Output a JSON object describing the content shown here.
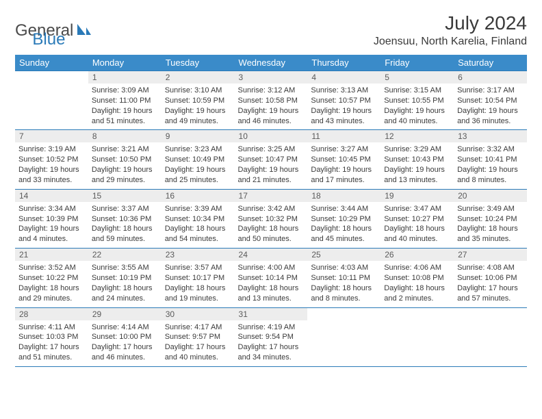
{
  "brand": {
    "part1": "General",
    "part2": "Blue"
  },
  "title": "July 2024",
  "location": "Joensuu, North Karelia, Finland",
  "colors": {
    "header_bg": "#3a8bc9",
    "border": "#2a7ab8",
    "daynum_bg": "#ededed",
    "text": "#3a3a3a"
  },
  "typography": {
    "title_fontsize": 28,
    "location_fontsize": 16,
    "header_fontsize": 13,
    "daynum_fontsize": 12,
    "body_fontsize": 11
  },
  "weekdays": [
    "Sunday",
    "Monday",
    "Tuesday",
    "Wednesday",
    "Thursday",
    "Friday",
    "Saturday"
  ],
  "weeks": [
    [
      {
        "n": "",
        "sr": "",
        "ss": "",
        "dl": ""
      },
      {
        "n": "1",
        "sr": "Sunrise: 3:09 AM",
        "ss": "Sunset: 11:00 PM",
        "dl": "Daylight: 19 hours and 51 minutes."
      },
      {
        "n": "2",
        "sr": "Sunrise: 3:10 AM",
        "ss": "Sunset: 10:59 PM",
        "dl": "Daylight: 19 hours and 49 minutes."
      },
      {
        "n": "3",
        "sr": "Sunrise: 3:12 AM",
        "ss": "Sunset: 10:58 PM",
        "dl": "Daylight: 19 hours and 46 minutes."
      },
      {
        "n": "4",
        "sr": "Sunrise: 3:13 AM",
        "ss": "Sunset: 10:57 PM",
        "dl": "Daylight: 19 hours and 43 minutes."
      },
      {
        "n": "5",
        "sr": "Sunrise: 3:15 AM",
        "ss": "Sunset: 10:55 PM",
        "dl": "Daylight: 19 hours and 40 minutes."
      },
      {
        "n": "6",
        "sr": "Sunrise: 3:17 AM",
        "ss": "Sunset: 10:54 PM",
        "dl": "Daylight: 19 hours and 36 minutes."
      }
    ],
    [
      {
        "n": "7",
        "sr": "Sunrise: 3:19 AM",
        "ss": "Sunset: 10:52 PM",
        "dl": "Daylight: 19 hours and 33 minutes."
      },
      {
        "n": "8",
        "sr": "Sunrise: 3:21 AM",
        "ss": "Sunset: 10:50 PM",
        "dl": "Daylight: 19 hours and 29 minutes."
      },
      {
        "n": "9",
        "sr": "Sunrise: 3:23 AM",
        "ss": "Sunset: 10:49 PM",
        "dl": "Daylight: 19 hours and 25 minutes."
      },
      {
        "n": "10",
        "sr": "Sunrise: 3:25 AM",
        "ss": "Sunset: 10:47 PM",
        "dl": "Daylight: 19 hours and 21 minutes."
      },
      {
        "n": "11",
        "sr": "Sunrise: 3:27 AM",
        "ss": "Sunset: 10:45 PM",
        "dl": "Daylight: 19 hours and 17 minutes."
      },
      {
        "n": "12",
        "sr": "Sunrise: 3:29 AM",
        "ss": "Sunset: 10:43 PM",
        "dl": "Daylight: 19 hours and 13 minutes."
      },
      {
        "n": "13",
        "sr": "Sunrise: 3:32 AM",
        "ss": "Sunset: 10:41 PM",
        "dl": "Daylight: 19 hours and 8 minutes."
      }
    ],
    [
      {
        "n": "14",
        "sr": "Sunrise: 3:34 AM",
        "ss": "Sunset: 10:39 PM",
        "dl": "Daylight: 19 hours and 4 minutes."
      },
      {
        "n": "15",
        "sr": "Sunrise: 3:37 AM",
        "ss": "Sunset: 10:36 PM",
        "dl": "Daylight: 18 hours and 59 minutes."
      },
      {
        "n": "16",
        "sr": "Sunrise: 3:39 AM",
        "ss": "Sunset: 10:34 PM",
        "dl": "Daylight: 18 hours and 54 minutes."
      },
      {
        "n": "17",
        "sr": "Sunrise: 3:42 AM",
        "ss": "Sunset: 10:32 PM",
        "dl": "Daylight: 18 hours and 50 minutes."
      },
      {
        "n": "18",
        "sr": "Sunrise: 3:44 AM",
        "ss": "Sunset: 10:29 PM",
        "dl": "Daylight: 18 hours and 45 minutes."
      },
      {
        "n": "19",
        "sr": "Sunrise: 3:47 AM",
        "ss": "Sunset: 10:27 PM",
        "dl": "Daylight: 18 hours and 40 minutes."
      },
      {
        "n": "20",
        "sr": "Sunrise: 3:49 AM",
        "ss": "Sunset: 10:24 PM",
        "dl": "Daylight: 18 hours and 35 minutes."
      }
    ],
    [
      {
        "n": "21",
        "sr": "Sunrise: 3:52 AM",
        "ss": "Sunset: 10:22 PM",
        "dl": "Daylight: 18 hours and 29 minutes."
      },
      {
        "n": "22",
        "sr": "Sunrise: 3:55 AM",
        "ss": "Sunset: 10:19 PM",
        "dl": "Daylight: 18 hours and 24 minutes."
      },
      {
        "n": "23",
        "sr": "Sunrise: 3:57 AM",
        "ss": "Sunset: 10:17 PM",
        "dl": "Daylight: 18 hours and 19 minutes."
      },
      {
        "n": "24",
        "sr": "Sunrise: 4:00 AM",
        "ss": "Sunset: 10:14 PM",
        "dl": "Daylight: 18 hours and 13 minutes."
      },
      {
        "n": "25",
        "sr": "Sunrise: 4:03 AM",
        "ss": "Sunset: 10:11 PM",
        "dl": "Daylight: 18 hours and 8 minutes."
      },
      {
        "n": "26",
        "sr": "Sunrise: 4:06 AM",
        "ss": "Sunset: 10:08 PM",
        "dl": "Daylight: 18 hours and 2 minutes."
      },
      {
        "n": "27",
        "sr": "Sunrise: 4:08 AM",
        "ss": "Sunset: 10:06 PM",
        "dl": "Daylight: 17 hours and 57 minutes."
      }
    ],
    [
      {
        "n": "28",
        "sr": "Sunrise: 4:11 AM",
        "ss": "Sunset: 10:03 PM",
        "dl": "Daylight: 17 hours and 51 minutes."
      },
      {
        "n": "29",
        "sr": "Sunrise: 4:14 AM",
        "ss": "Sunset: 10:00 PM",
        "dl": "Daylight: 17 hours and 46 minutes."
      },
      {
        "n": "30",
        "sr": "Sunrise: 4:17 AM",
        "ss": "Sunset: 9:57 PM",
        "dl": "Daylight: 17 hours and 40 minutes."
      },
      {
        "n": "31",
        "sr": "Sunrise: 4:19 AM",
        "ss": "Sunset: 9:54 PM",
        "dl": "Daylight: 17 hours and 34 minutes."
      },
      {
        "n": "",
        "sr": "",
        "ss": "",
        "dl": ""
      },
      {
        "n": "",
        "sr": "",
        "ss": "",
        "dl": ""
      },
      {
        "n": "",
        "sr": "",
        "ss": "",
        "dl": ""
      }
    ]
  ]
}
